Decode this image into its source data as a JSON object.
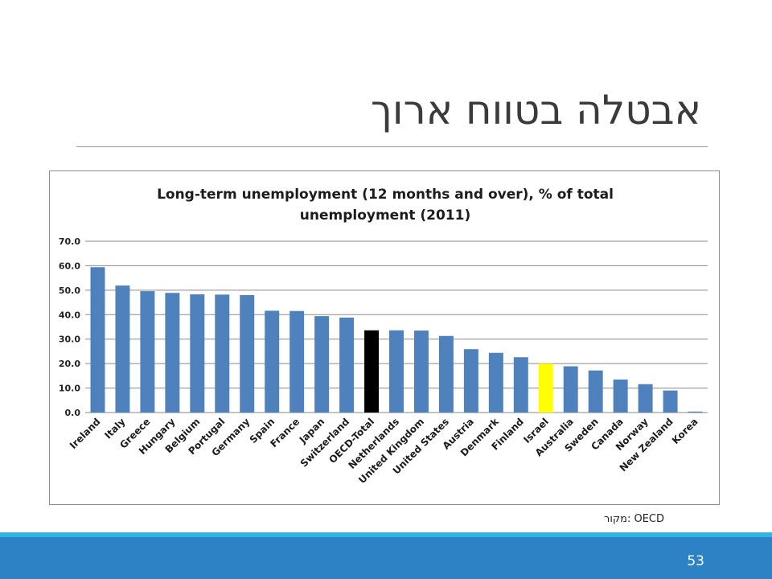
{
  "slide": {
    "title": "אבטלה בטווח ארוך",
    "source": "מקור: OECD",
    "page_number": "53"
  },
  "colors": {
    "bar_default": "#4f81bd",
    "bar_oecd_total": "#000000",
    "bar_israel": "#ffff00",
    "footer": "#2d82c6",
    "footer_accent": "#35b3e0"
  },
  "chart_data": {
    "type": "bar",
    "title_line1": "Long-term unemployment  (12 months and over), % of total",
    "title_line2": "unemployment  (2011)",
    "categories": [
      "Ireland",
      "Italy",
      "Greece",
      "Hungary",
      "Belgium",
      "Portugal",
      "Germany",
      "Spain",
      "France",
      "Japan",
      "Switzerland",
      "OECD-Total",
      "Netherlands",
      "United Kingdom",
      "United States",
      "Austria",
      "Denmark",
      "Finland",
      "Israel",
      "Australia",
      "Sweden",
      "Canada",
      "Norway",
      "New Zealand",
      "Korea"
    ],
    "values": [
      59.4,
      51.9,
      49.6,
      48.9,
      48.3,
      48.2,
      48.0,
      41.6,
      41.5,
      39.4,
      38.8,
      33.6,
      33.6,
      33.5,
      31.3,
      25.9,
      24.4,
      22.6,
      20.0,
      18.9,
      17.2,
      13.5,
      11.6,
      9.0,
      0.4
    ],
    "highlight": {
      "OECD-Total": "bar_oecd_total",
      "Israel": "bar_israel"
    },
    "yticks": [
      "0.0",
      "10.0",
      "20.0",
      "30.0",
      "40.0",
      "50.0",
      "60.0",
      "70.0"
    ],
    "ylim": [
      0,
      70
    ],
    "grid": true,
    "legend": "none"
  }
}
